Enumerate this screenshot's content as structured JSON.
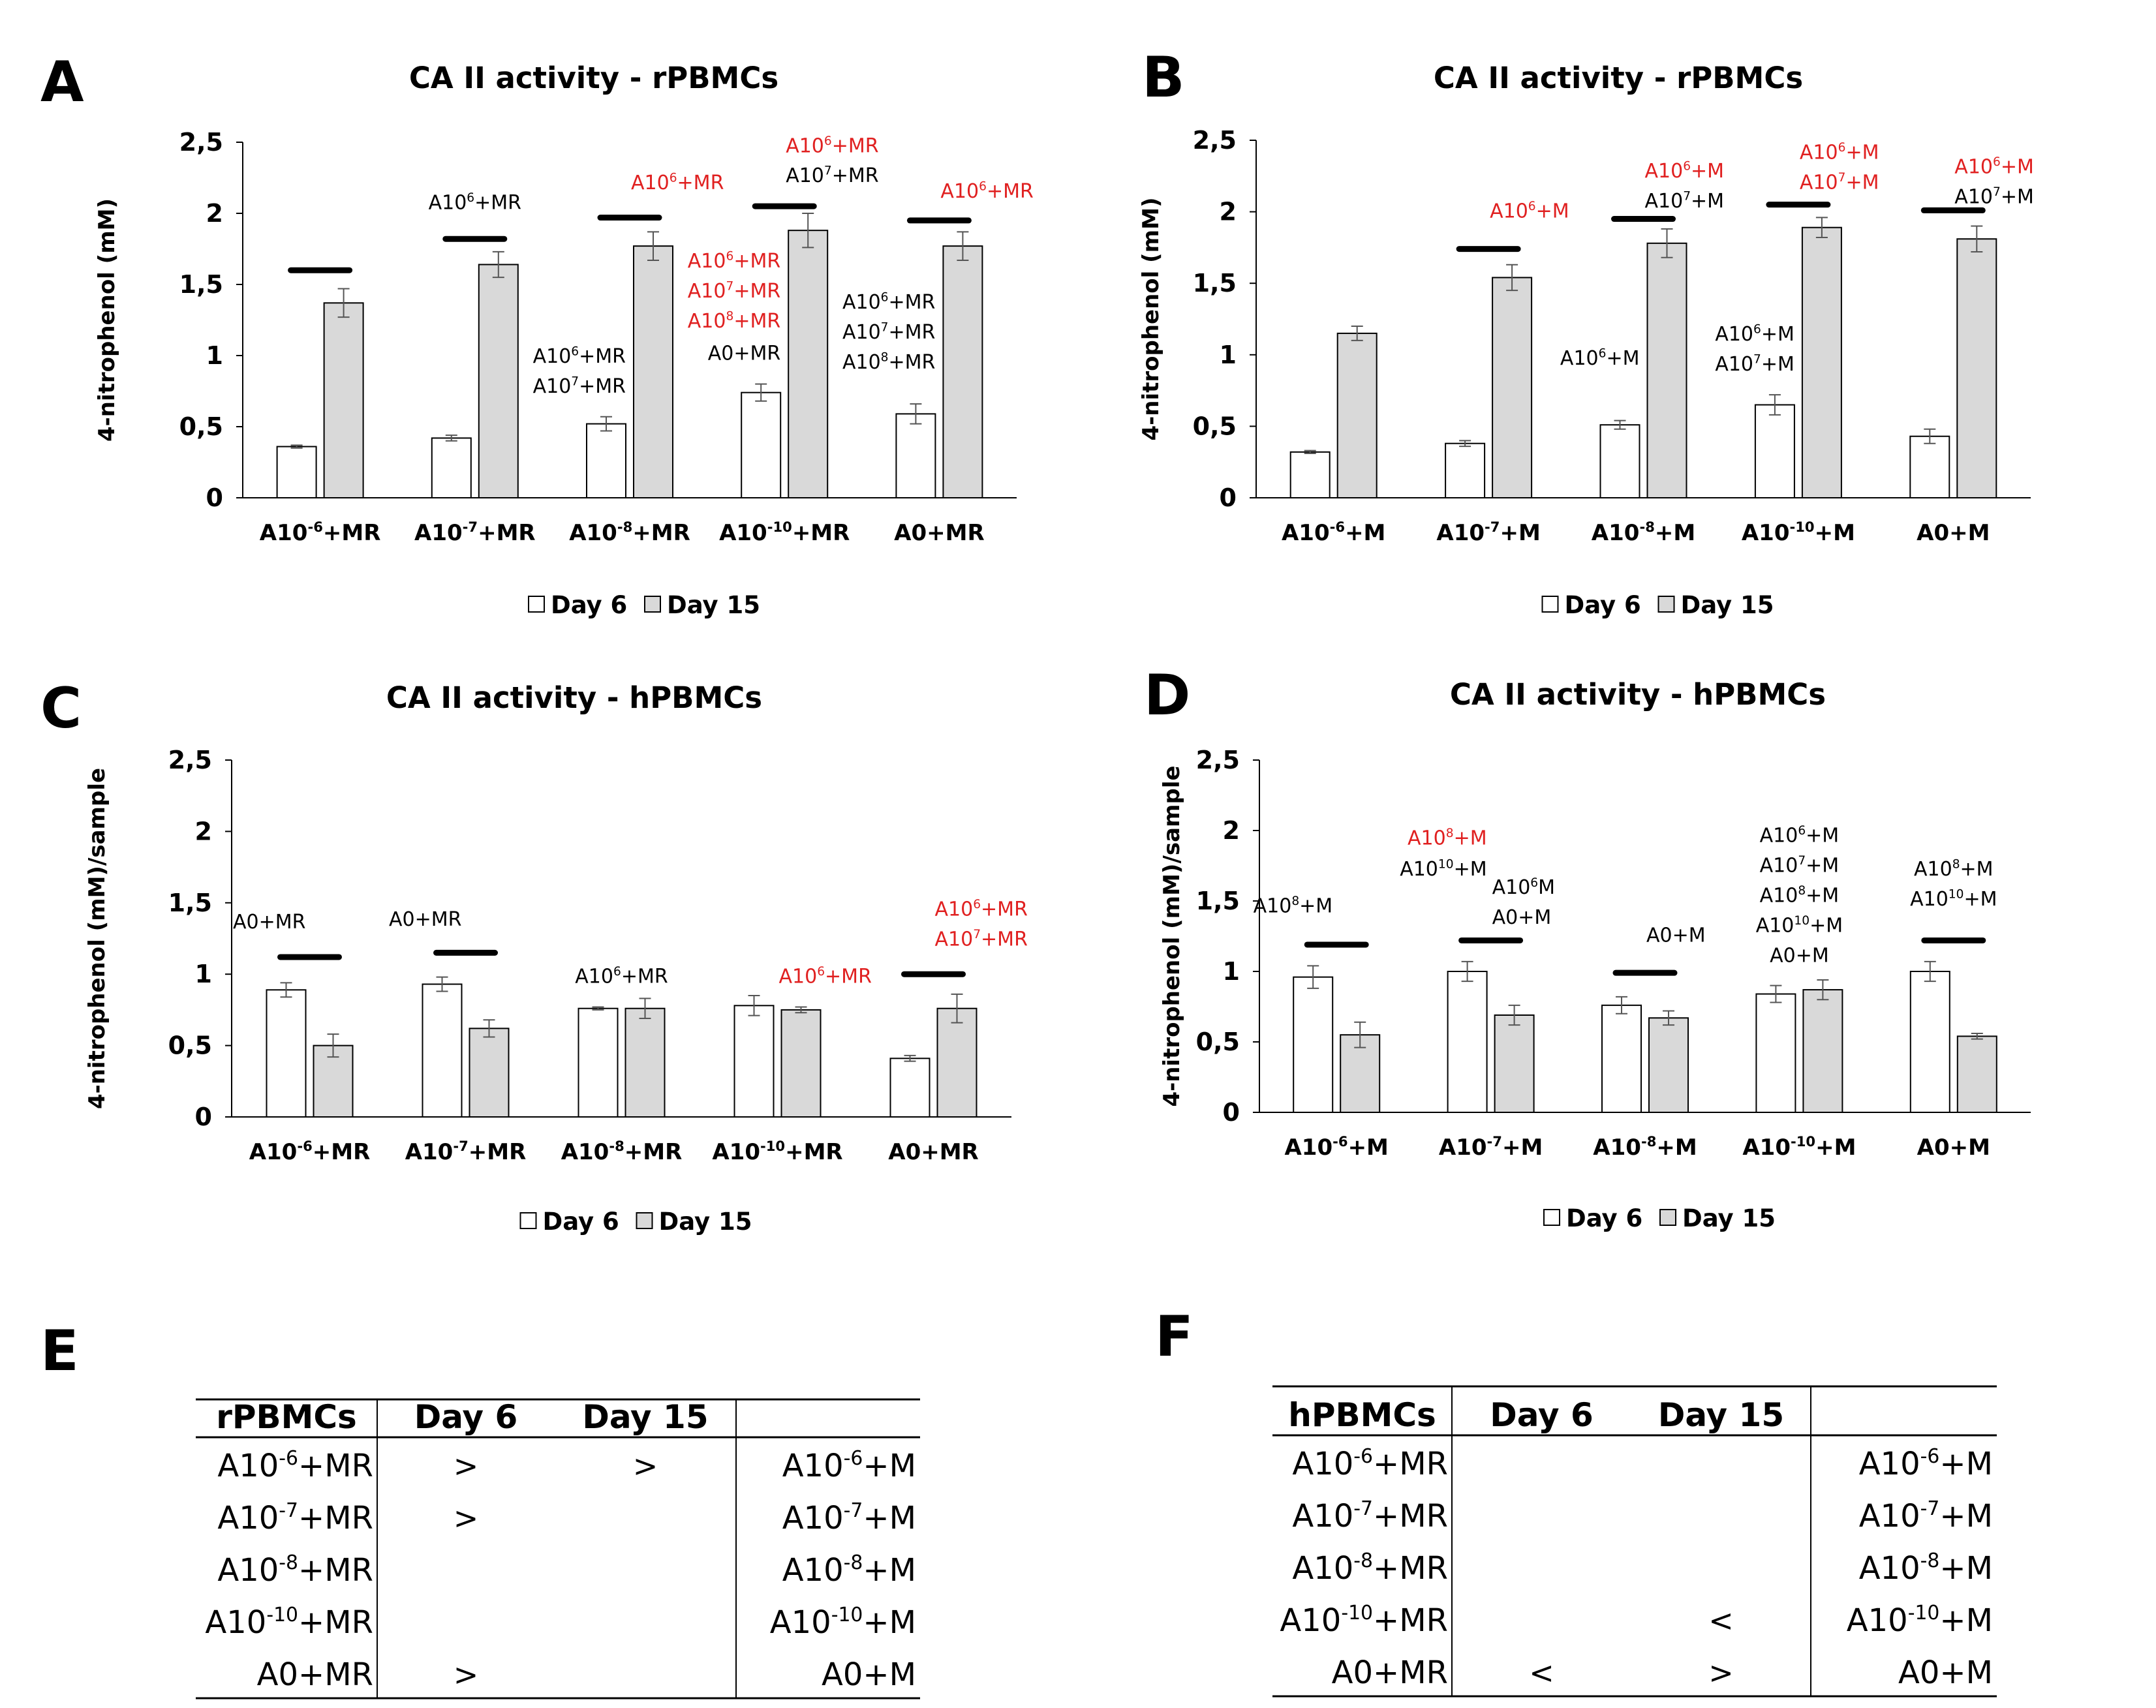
{
  "colors": {
    "day6_fill": "#ffffff",
    "day15_fill": "#d9d9d9",
    "bar_stroke": "#000000",
    "red_annot": "#e02020",
    "black_annot": "#000000",
    "sig_bar": "#000000",
    "axis": "#000000"
  },
  "legend": {
    "day6": "Day 6",
    "day15": "Day 15"
  },
  "chart_data": [
    {
      "id": "A",
      "panel_letter": "A",
      "type": "bar",
      "title": "CA II activity - rPBMCs",
      "ylabel": "4-nitrophenol (mM)",
      "ylim": [
        0,
        2.5
      ],
      "ytick_labels": [
        "0",
        "0,5",
        "1",
        "1,5",
        "2",
        "2,5"
      ],
      "categories": [
        {
          "base": "A10",
          "exp": "-6",
          "suffix": "+MR"
        },
        {
          "base": "A10",
          "exp": "-7",
          "suffix": "+MR"
        },
        {
          "base": "A10",
          "exp": "-8",
          "suffix": "+MR"
        },
        {
          "base": "A10",
          "exp": "-10",
          "suffix": "+MR"
        },
        {
          "base": "A0+MR",
          "exp": "",
          "suffix": ""
        }
      ],
      "series": [
        {
          "name": "Day 6",
          "values": [
            0.36,
            0.42,
            0.52,
            0.74,
            0.59
          ],
          "errors": [
            0.01,
            0.02,
            0.05,
            0.06,
            0.07
          ]
        },
        {
          "name": "Day 15",
          "values": [
            1.37,
            1.64,
            1.77,
            1.88,
            1.77
          ],
          "errors": [
            0.1,
            0.09,
            0.1,
            0.12,
            0.1
          ]
        }
      ],
      "sig_bars": [
        {
          "cat": 0,
          "y": 1.6
        },
        {
          "cat": 1,
          "y": 1.82
        },
        {
          "cat": 2,
          "y": 1.97
        },
        {
          "cat": 3,
          "y": 2.05
        },
        {
          "cat": 4,
          "y": 1.95
        }
      ],
      "annotations": [
        {
          "cat": 1,
          "side": "mid",
          "y": 2.03,
          "color": "black",
          "lines": [
            {
              "base": "A10",
              "exp": "6",
              "suffix": "+MR"
            }
          ]
        },
        {
          "cat": 2,
          "side": "right",
          "y": 2.17,
          "color": "red",
          "lines": [
            {
              "base": "A10",
              "exp": "6",
              "suffix": "+MR"
            }
          ]
        },
        {
          "cat": 3,
          "side": "right",
          "y": 2.43,
          "color": "red",
          "lines": [
            {
              "base": "A10",
              "exp": "6",
              "suffix": "+MR"
            }
          ]
        },
        {
          "cat": 3,
          "side": "right",
          "y": 2.22,
          "color": "black",
          "lines": [
            {
              "base": "A10",
              "exp": "7",
              "suffix": "+MR"
            }
          ]
        },
        {
          "cat": 4,
          "side": "right",
          "y": 2.11,
          "color": "red",
          "lines": [
            {
              "base": "A10",
              "exp": "6",
              "suffix": "+MR"
            }
          ]
        },
        {
          "cat": 2,
          "side": "left",
          "y": 0.95,
          "color": "black",
          "lines": [
            {
              "base": "A10",
              "exp": "6",
              "suffix": "+MR"
            },
            {
              "base": "A10",
              "exp": "7",
              "suffix": "+MR"
            }
          ]
        },
        {
          "cat": 3,
          "side": "left",
          "y": 1.62,
          "color": "red",
          "lines": [
            {
              "base": "A10",
              "exp": "6",
              "suffix": "+MR"
            },
            {
              "base": "A10",
              "exp": "7",
              "suffix": "+MR"
            },
            {
              "base": "A10",
              "exp": "8",
              "suffix": "+MR"
            }
          ]
        },
        {
          "cat": 3,
          "side": "left",
          "y": 0.97,
          "color": "black",
          "lines": [
            {
              "base": "A0+MR",
              "exp": "",
              "suffix": ""
            }
          ]
        },
        {
          "cat": 4,
          "side": "left",
          "y": 1.33,
          "color": "black",
          "lines": [
            {
              "base": "A10",
              "exp": "6",
              "suffix": "+MR"
            },
            {
              "base": "A10",
              "exp": "7",
              "suffix": "+MR"
            },
            {
              "base": "A10",
              "exp": "8",
              "suffix": "+MR"
            }
          ]
        }
      ]
    },
    {
      "id": "B",
      "panel_letter": "B",
      "type": "bar",
      "title": "CA II activity - rPBMCs",
      "ylabel": "4-nitrophenol (mM)",
      "ylim": [
        0,
        2.5
      ],
      "ytick_labels": [
        "0",
        "0,5",
        "1",
        "1,5",
        "2",
        "2,5"
      ],
      "categories": [
        {
          "base": "A10",
          "exp": "-6",
          "suffix": "+M"
        },
        {
          "base": "A10",
          "exp": "-7",
          "suffix": "+M"
        },
        {
          "base": "A10",
          "exp": "-8",
          "suffix": "+M"
        },
        {
          "base": "A10",
          "exp": "-10",
          "suffix": "+M"
        },
        {
          "base": "A0+M",
          "exp": "",
          "suffix": ""
        }
      ],
      "series": [
        {
          "name": "Day 6",
          "values": [
            0.32,
            0.38,
            0.51,
            0.65,
            0.43
          ],
          "errors": [
            0.01,
            0.02,
            0.03,
            0.07,
            0.05
          ]
        },
        {
          "name": "Day 15",
          "values": [
            1.15,
            1.54,
            1.78,
            1.89,
            1.81
          ],
          "errors": [
            0.05,
            0.09,
            0.1,
            0.07,
            0.09
          ]
        }
      ],
      "sig_bars": [
        {
          "cat": 1,
          "y": 1.74
        },
        {
          "cat": 2,
          "y": 1.95
        },
        {
          "cat": 3,
          "y": 2.05
        },
        {
          "cat": 4,
          "y": 2.01
        }
      ],
      "annotations": [
        {
          "cat": 1,
          "side": "right",
          "y": 1.96,
          "color": "red",
          "lines": [
            {
              "base": "A10",
              "exp": "6",
              "suffix": "+M"
            }
          ]
        },
        {
          "cat": 2,
          "side": "right",
          "y": 2.24,
          "color": "red",
          "lines": [
            {
              "base": "A10",
              "exp": "6",
              "suffix": "+M"
            }
          ]
        },
        {
          "cat": 2,
          "side": "right",
          "y": 2.03,
          "color": "black",
          "lines": [
            {
              "base": "A10",
              "exp": "7",
              "suffix": "+M"
            }
          ]
        },
        {
          "cat": 3,
          "side": "right",
          "y": 2.37,
          "color": "red",
          "lines": [
            {
              "base": "A10",
              "exp": "6",
              "suffix": "+M"
            },
            {
              "base": "A10",
              "exp": "7",
              "suffix": "+M"
            }
          ]
        },
        {
          "cat": 4,
          "side": "right",
          "y": 2.27,
          "color": "red",
          "lines": [
            {
              "base": "A10",
              "exp": "6",
              "suffix": "+M"
            }
          ]
        },
        {
          "cat": 4,
          "side": "right",
          "y": 2.06,
          "color": "black",
          "lines": [
            {
              "base": "A10",
              "exp": "7",
              "suffix": "+M"
            }
          ]
        },
        {
          "cat": 2,
          "side": "left",
          "y": 0.93,
          "color": "black",
          "lines": [
            {
              "base": "A10",
              "exp": "6",
              "suffix": "+M"
            }
          ]
        },
        {
          "cat": 3,
          "side": "left",
          "y": 1.1,
          "color": "black",
          "lines": [
            {
              "base": "A10",
              "exp": "6",
              "suffix": "+M"
            },
            {
              "base": "A10",
              "exp": "7",
              "suffix": "+M"
            }
          ]
        }
      ]
    },
    {
      "id": "C",
      "panel_letter": "C",
      "type": "bar",
      "title": "CA II activity - hPBMCs",
      "ylabel": "4-nitrophenol (mM)/sample",
      "ylim": [
        0,
        2.5
      ],
      "ytick_labels": [
        "0",
        "0,5",
        "1",
        "1,5",
        "2",
        "2,5"
      ],
      "categories": [
        {
          "base": "A10",
          "exp": "-6",
          "suffix": "+MR"
        },
        {
          "base": "A10",
          "exp": "-7",
          "suffix": "+MR"
        },
        {
          "base": "A10",
          "exp": "-8",
          "suffix": "+MR"
        },
        {
          "base": "A10",
          "exp": "-10",
          "suffix": "+MR"
        },
        {
          "base": "A0+MR",
          "exp": "",
          "suffix": ""
        }
      ],
      "series": [
        {
          "name": "Day 6",
          "values": [
            0.89,
            0.93,
            0.76,
            0.78,
            0.41
          ],
          "errors": [
            0.05,
            0.05,
            0.01,
            0.07,
            0.02
          ]
        },
        {
          "name": "Day 15",
          "values": [
            0.5,
            0.62,
            0.76,
            0.75,
            0.76
          ],
          "errors": [
            0.08,
            0.06,
            0.07,
            0.02,
            0.1
          ]
        }
      ],
      "sig_bars": [
        {
          "cat": 0,
          "y": 1.12
        },
        {
          "cat": 1,
          "y": 1.15
        },
        {
          "cat": 4,
          "y": 1.0
        }
      ],
      "annotations": [
        {
          "cat": 0,
          "side": "left",
          "y": 1.32,
          "color": "black",
          "lines": [
            {
              "base": "A0+MR",
              "exp": "",
              "suffix": ""
            }
          ]
        },
        {
          "cat": 1,
          "side": "left",
          "y": 1.34,
          "color": "black",
          "lines": [
            {
              "base": "A0+MR",
              "exp": "",
              "suffix": ""
            }
          ]
        },
        {
          "cat": 2,
          "side": "mid",
          "y": 0.94,
          "color": "black",
          "lines": [
            {
              "base": "A10",
              "exp": "6",
              "suffix": "+MR"
            }
          ]
        },
        {
          "cat": 3,
          "side": "right",
          "y": 0.94,
          "color": "red",
          "lines": [
            {
              "base": "A10",
              "exp": "6",
              "suffix": "+MR"
            }
          ]
        },
        {
          "cat": 4,
          "side": "right",
          "y": 1.41,
          "color": "red",
          "lines": [
            {
              "base": "A10",
              "exp": "6",
              "suffix": "+MR"
            },
            {
              "base": "A10",
              "exp": "7",
              "suffix": "+MR"
            }
          ]
        }
      ]
    },
    {
      "id": "D",
      "panel_letter": "D",
      "type": "bar",
      "title": "CA II activity - hPBMCs",
      "ylabel": "4-nitrophenol (mM)/sample",
      "ylim": [
        0,
        2.5
      ],
      "ytick_labels": [
        "0",
        "0,5",
        "1",
        "1,5",
        "2",
        "2,5"
      ],
      "categories": [
        {
          "base": "A10",
          "exp": "-6",
          "suffix": "+M"
        },
        {
          "base": "A10",
          "exp": "-7",
          "suffix": "+M"
        },
        {
          "base": "A10",
          "exp": "-8",
          "suffix": "+M"
        },
        {
          "base": "A10",
          "exp": "-10",
          "suffix": "+M"
        },
        {
          "base": "A0+M",
          "exp": "",
          "suffix": ""
        }
      ],
      "series": [
        {
          "name": "Day 6",
          "values": [
            0.96,
            1.0,
            0.76,
            0.84,
            1.0
          ],
          "errors": [
            0.08,
            0.07,
            0.06,
            0.06,
            0.07
          ]
        },
        {
          "name": "Day 15",
          "values": [
            0.55,
            0.69,
            0.67,
            0.87,
            0.54
          ],
          "errors": [
            0.09,
            0.07,
            0.05,
            0.07,
            0.02
          ]
        }
      ],
      "sig_bars": [
        {
          "cat": 0,
          "y": 1.19
        },
        {
          "cat": 1,
          "y": 1.22
        },
        {
          "cat": 2,
          "y": 0.99
        },
        {
          "cat": 4,
          "y": 1.22
        }
      ],
      "annotations": [
        {
          "cat": 0,
          "side": "left",
          "y": 1.42,
          "color": "black",
          "lines": [
            {
              "base": "A10",
              "exp": "8",
              "suffix": "+M"
            }
          ]
        },
        {
          "cat": 1,
          "side": "left",
          "y": 1.9,
          "color": "red",
          "lines": [
            {
              "base": "A10",
              "exp": "8",
              "suffix": "+M"
            }
          ]
        },
        {
          "cat": 1,
          "side": "left",
          "y": 1.68,
          "color": "black",
          "lines": [
            {
              "base": "A10",
              "exp": "10",
              "suffix": "+M"
            }
          ]
        },
        {
          "cat": 1,
          "side": "right",
          "y": 1.55,
          "color": "black",
          "lines": [
            {
              "base": "A10",
              "exp": "6",
              "suffix": "M"
            },
            {
              "base": "A0+M",
              "exp": "",
              "suffix": ""
            }
          ]
        },
        {
          "cat": 2,
          "side": "right",
          "y": 1.21,
          "color": "black",
          "lines": [
            {
              "base": "A0+M",
              "exp": "",
              "suffix": ""
            }
          ]
        },
        {
          "cat": 3,
          "side": "mid",
          "y": 1.92,
          "color": "black",
          "lines": [
            {
              "base": "A10",
              "exp": "6",
              "suffix": "+M"
            },
            {
              "base": "A10",
              "exp": "7",
              "suffix": "+M"
            },
            {
              "base": "A10",
              "exp": "8",
              "suffix": "+M"
            },
            {
              "base": "A10",
              "exp": "10",
              "suffix": "+M"
            },
            {
              "base": "A0+M",
              "exp": "",
              "suffix": ""
            }
          ]
        },
        {
          "cat": 4,
          "side": "mid",
          "y": 1.68,
          "color": "black",
          "lines": [
            {
              "base": "A10",
              "exp": "8",
              "suffix": "+M"
            },
            {
              "base": "A10",
              "exp": "10",
              "suffix": "+M"
            }
          ]
        }
      ]
    },
    {
      "id": "E",
      "type": "table",
      "panel_letter": "E",
      "headers": [
        "rPBMCs",
        "Day 6",
        "Day 15",
        ""
      ],
      "rows": [
        {
          "left": {
            "base": "A10",
            "exp": "-6",
            "suffix": "+MR"
          },
          "day6": ">",
          "day15": ">",
          "right": {
            "base": "A10",
            "exp": "-6",
            "suffix": "+M"
          }
        },
        {
          "left": {
            "base": "A10",
            "exp": "-7",
            "suffix": "+MR"
          },
          "day6": ">",
          "day15": "",
          "right": {
            "base": "A10",
            "exp": "-7",
            "suffix": "+M"
          }
        },
        {
          "left": {
            "base": "A10",
            "exp": "-8",
            "suffix": "+MR"
          },
          "day6": "",
          "day15": "",
          "right": {
            "base": "A10",
            "exp": "-8",
            "suffix": "+M"
          }
        },
        {
          "left": {
            "base": "A10",
            "exp": "-10",
            "suffix": "+MR"
          },
          "day6": "",
          "day15": "",
          "right": {
            "base": "A10",
            "exp": "-10",
            "suffix": "+M"
          }
        },
        {
          "left": {
            "base": "A0+MR",
            "exp": "",
            "suffix": ""
          },
          "day6": ">",
          "day15": "",
          "right": {
            "base": "A0+M",
            "exp": "",
            "suffix": ""
          }
        }
      ]
    },
    {
      "id": "F",
      "type": "table",
      "panel_letter": "F",
      "headers": [
        "hPBMCs",
        "Day 6",
        "Day 15",
        ""
      ],
      "rows": [
        {
          "left": {
            "base": "A10",
            "exp": "-6",
            "suffix": "+MR"
          },
          "day6": "",
          "day15": "",
          "right": {
            "base": "A10",
            "exp": "-6",
            "suffix": "+M"
          }
        },
        {
          "left": {
            "base": "A10",
            "exp": "-7",
            "suffix": "+MR"
          },
          "day6": "",
          "day15": "",
          "right": {
            "base": "A10",
            "exp": "-7",
            "suffix": "+M"
          }
        },
        {
          "left": {
            "base": "A10",
            "exp": "-8",
            "suffix": "+MR"
          },
          "day6": "",
          "day15": "",
          "right": {
            "base": "A10",
            "exp": "-8",
            "suffix": "+M"
          }
        },
        {
          "left": {
            "base": "A10",
            "exp": "-10",
            "suffix": "+MR"
          },
          "day6": "",
          "day15": "<",
          "right": {
            "base": "A10",
            "exp": "-10",
            "suffix": "+M"
          }
        },
        {
          "left": {
            "base": "A0+MR",
            "exp": "",
            "suffix": ""
          },
          "day6": "<",
          "day15": ">",
          "right": {
            "base": "A0+M",
            "exp": "",
            "suffix": ""
          }
        }
      ]
    }
  ]
}
